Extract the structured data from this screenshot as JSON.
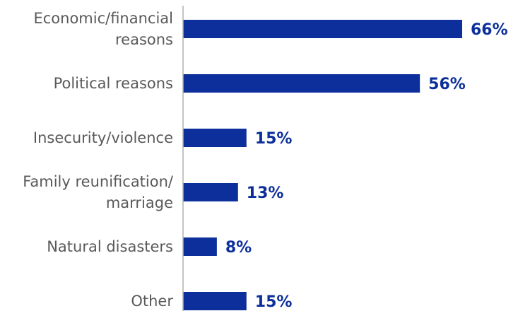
{
  "colors": {
    "bar": "#0c2f9b",
    "value_label": "#0c2f9b",
    "category_label": "#595959",
    "axis": "#b0b0b0"
  },
  "chart_data": {
    "type": "bar",
    "orientation": "horizontal",
    "title": "",
    "xlabel": "",
    "ylabel": "",
    "categories": [
      "Economic/financial reasons",
      "Political reasons",
      "Insecurity/violence",
      "Family reunification/ marriage",
      "Natural disasters",
      "Other"
    ],
    "category_lines": [
      [
        "Economic/financial",
        "reasons"
      ],
      [
        "Political reasons"
      ],
      [
        "Insecurity/violence"
      ],
      [
        "Family reunification/",
        "marriage"
      ],
      [
        "Natural disasters"
      ],
      [
        "Other"
      ]
    ],
    "values": [
      66,
      56,
      15,
      13,
      8,
      15
    ],
    "value_labels": [
      "66%",
      "56%",
      "15%",
      "13%",
      "8%",
      "15%"
    ],
    "unit": "%",
    "xlim": [
      0,
      66
    ],
    "grid": false,
    "legend": "none"
  }
}
